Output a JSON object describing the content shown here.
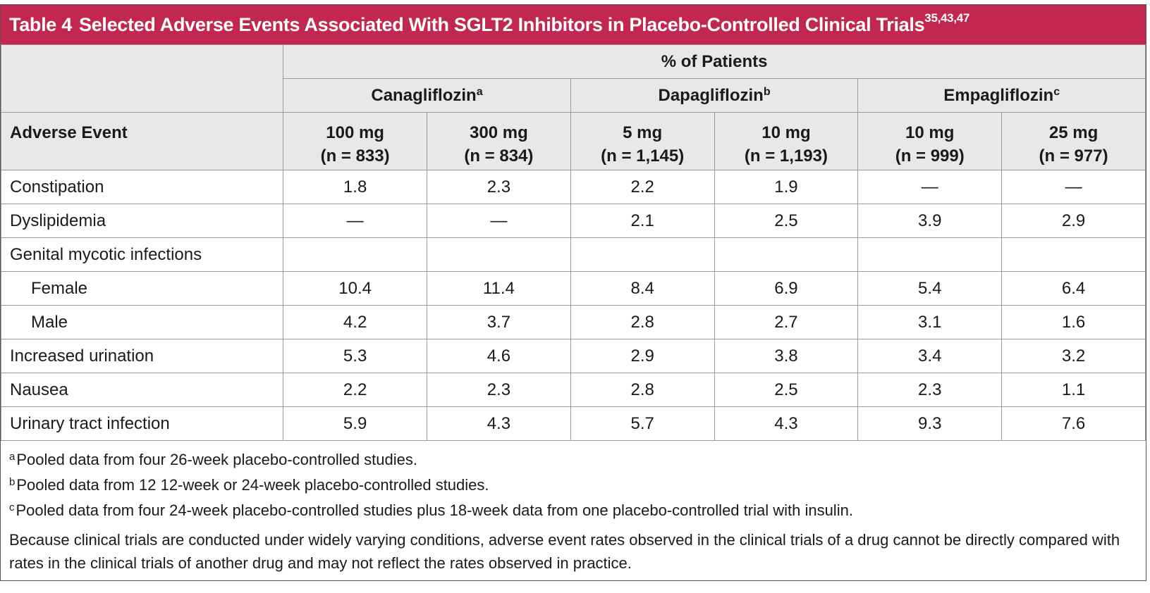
{
  "title": {
    "label": "Table 4",
    "text": "Selected Adverse Events Associated With SGLT2 Inhibitors in Placebo-Controlled Clinical Trials",
    "refs": "35,43,47"
  },
  "header": {
    "group_label": "% of Patients",
    "drugs": [
      {
        "name": "Canagliflozin",
        "marker": "a"
      },
      {
        "name": "Dapagliflozin",
        "marker": "b"
      },
      {
        "name": "Empagliflozin",
        "marker": "c"
      }
    ],
    "row_label": "Adverse Event",
    "doses": [
      {
        "dose": "100 mg",
        "n": "(n = 833)"
      },
      {
        "dose": "300 mg",
        "n": "(n = 834)"
      },
      {
        "dose": "5 mg",
        "n": "(n = 1,145)"
      },
      {
        "dose": "10 mg",
        "n": "(n = 1,193)"
      },
      {
        "dose": "10 mg",
        "n": "(n = 999)"
      },
      {
        "dose": "25 mg",
        "n": "(n = 977)"
      }
    ]
  },
  "rows": [
    {
      "event": "Constipation",
      "indent": false,
      "values": [
        "1.8",
        "2.3",
        "2.2",
        "1.9",
        "—",
        "—"
      ]
    },
    {
      "event": "Dyslipidemia",
      "indent": false,
      "values": [
        "—",
        "—",
        "2.1",
        "2.5",
        "3.9",
        "2.9"
      ]
    },
    {
      "event": "Genital mycotic infections",
      "indent": false,
      "values": [
        "",
        "",
        "",
        "",
        "",
        ""
      ]
    },
    {
      "event": "Female",
      "indent": true,
      "values": [
        "10.4",
        "11.4",
        "8.4",
        "6.9",
        "5.4",
        "6.4"
      ]
    },
    {
      "event": "Male",
      "indent": true,
      "values": [
        "4.2",
        "3.7",
        "2.8",
        "2.7",
        "3.1",
        "1.6"
      ]
    },
    {
      "event": "Increased urination",
      "indent": false,
      "values": [
        "5.3",
        "4.6",
        "2.9",
        "3.8",
        "3.4",
        "3.2"
      ]
    },
    {
      "event": "Nausea",
      "indent": false,
      "values": [
        "2.2",
        "2.3",
        "2.8",
        "2.5",
        "2.3",
        "1.1"
      ]
    },
    {
      "event": "Urinary tract infection",
      "indent": false,
      "values": [
        "5.9",
        "4.3",
        "5.7",
        "4.3",
        "9.3",
        "7.6"
      ]
    }
  ],
  "footnotes": [
    {
      "marker": "a",
      "text": "Pooled data from four 26-week placebo-controlled studies."
    },
    {
      "marker": "b",
      "text": "Pooled data from 12 12-week or 24-week placebo-controlled studies."
    },
    {
      "marker": "c",
      "text": "Pooled data from four 24-week placebo-controlled studies plus 18-week data from one placebo-controlled trial with insulin."
    }
  ],
  "disclaimer": "Because clinical trials are conducted under widely varying conditions, adverse event rates observed in the clinical trials of a drug cannot be directly compared with rates in the clinical trials of another drug and may not reflect the rates observed in practice.",
  "colors": {
    "title_bar": "#c2284f",
    "header_bg": "#e8e8e8"
  }
}
